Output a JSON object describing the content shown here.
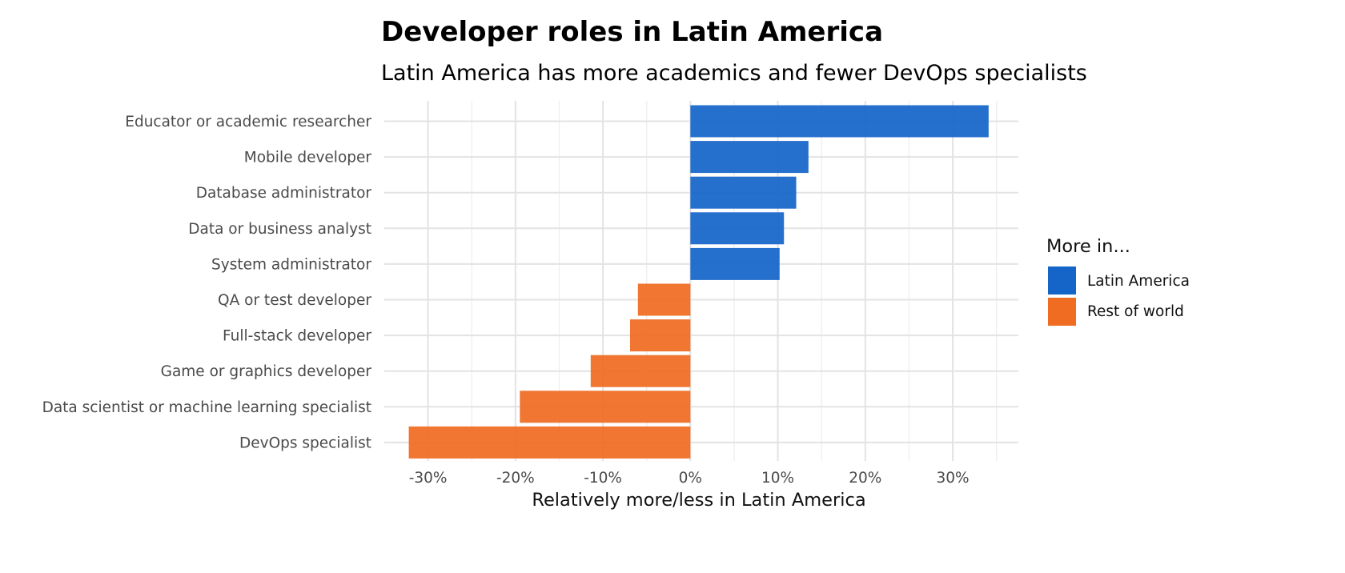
{
  "chart_data": {
    "type": "bar",
    "orientation": "horizontal",
    "title": "Developer roles in Latin America",
    "subtitle": "Latin America has more academics and fewer DevOps specialists",
    "xlabel": "Relatively more/less in Latin America",
    "ylabel": "",
    "xlim": [
      -0.35,
      0.375
    ],
    "x_ticks": [
      -0.3,
      -0.2,
      -0.1,
      0,
      0.1,
      0.2,
      0.3
    ],
    "x_tick_labels": [
      "-30%",
      "-20%",
      "-10%",
      "0%",
      "10%",
      "20%",
      "30%"
    ],
    "grid": true,
    "categories": [
      "Educator or academic researcher",
      "Mobile developer",
      "Database administrator",
      "Data or business analyst",
      "System administrator",
      "QA or test developer",
      "Full-stack developer",
      "Game or graphics developer",
      "Data scientist or machine learning specialist",
      "DevOps specialist"
    ],
    "values": [
      0.341,
      0.135,
      0.121,
      0.107,
      0.102,
      -0.06,
      -0.069,
      -0.114,
      -0.195,
      -0.322
    ],
    "legend": {
      "title": "More in...",
      "position": "right",
      "entries": [
        {
          "label": "Latin America",
          "color": "#1565c9"
        },
        {
          "label": "Rest of world",
          "color": "#ef6c22"
        }
      ]
    }
  },
  "colors": {
    "positive": "#1565c9",
    "negative": "#ef6c22"
  }
}
